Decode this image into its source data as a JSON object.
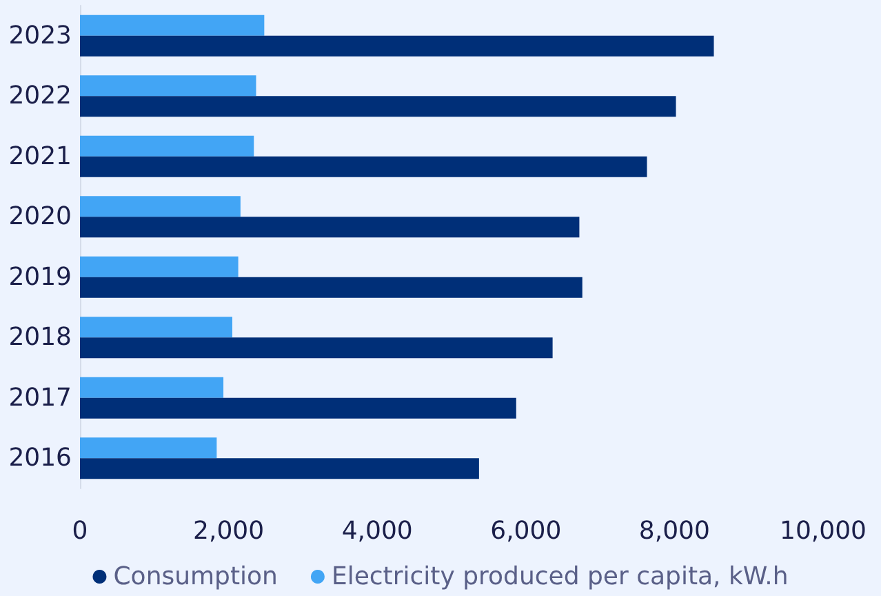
{
  "chart_data": {
    "type": "bar",
    "orientation": "horizontal",
    "categories": [
      "2023",
      "2022",
      "2021",
      "2020",
      "2019",
      "2018",
      "2017",
      "2016"
    ],
    "series": [
      {
        "name": "Consumption",
        "color": "#002f78",
        "values": [
          8530,
          8020,
          7630,
          6720,
          6760,
          6360,
          5870,
          5370
        ]
      },
      {
        "name": "Electricity produced per capita, kW.h",
        "color": "#42a5f5",
        "values": [
          2480,
          2370,
          2340,
          2160,
          2130,
          2050,
          1930,
          1840
        ]
      }
    ],
    "xlim": [
      0,
      10000
    ],
    "xticks": [
      0,
      {
        "value": 2000,
        "label": "2,000"
      },
      {
        "value": 4000,
        "label": "4,000"
      },
      {
        "value": 6000,
        "label": "6,000"
      },
      {
        "value": 8000,
        "label": "8,000"
      },
      {
        "value": 10000,
        "label": "10,000"
      }
    ],
    "grid": false,
    "legend": "bottom"
  }
}
